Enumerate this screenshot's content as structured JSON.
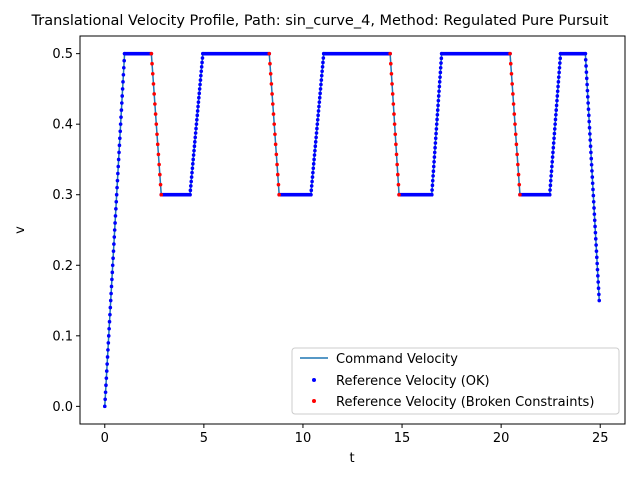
{
  "chart_data": {
    "type": "line+scatter",
    "title": "Translational Velocity Profile, Path: sin_curve_4, Method: Regulated Pure Pursuit",
    "xlabel": "t",
    "ylabel": "v",
    "xlim": [
      -1.25,
      26.25
    ],
    "ylim": [
      -0.025,
      0.525
    ],
    "x_ticks": [
      0,
      5,
      10,
      15,
      20,
      25
    ],
    "y_ticks": [
      0.0,
      0.1,
      0.2,
      0.3,
      0.4,
      0.5
    ],
    "x_tick_labels": [
      "0",
      "5",
      "10",
      "15",
      "20",
      "25"
    ],
    "y_tick_labels": [
      "0.0",
      "0.1",
      "0.2",
      "0.3",
      "0.4",
      "0.5"
    ],
    "grid": false,
    "legend_position": "lower-right",
    "series": [
      {
        "name": "Command Velocity",
        "kind": "line",
        "color": "#1f77b4",
        "x": [
          0,
          1.0,
          2.35,
          2.85,
          4.3,
          4.95,
          8.3,
          8.8,
          10.4,
          11.05,
          14.4,
          14.85,
          16.5,
          17.0,
          20.45,
          20.95,
          22.45,
          23.0,
          24.25,
          24.95
        ],
        "y": [
          0.0,
          0.5,
          0.5,
          0.3,
          0.3,
          0.5,
          0.5,
          0.3,
          0.3,
          0.5,
          0.5,
          0.3,
          0.3,
          0.5,
          0.5,
          0.3,
          0.3,
          0.5,
          0.5,
          0.15
        ]
      },
      {
        "name": "Reference Velocity (OK)",
        "kind": "scatter",
        "color": "#0000ff",
        "segments": [
          {
            "x0": 0.0,
            "x1": 1.0,
            "y0": 0.0,
            "y1": 0.5,
            "n": 50
          },
          {
            "x0": 1.0,
            "x1": 2.35,
            "y0": 0.5,
            "y1": 0.5,
            "n": 28
          },
          {
            "x0": 2.85,
            "x1": 4.3,
            "y0": 0.3,
            "y1": 0.3,
            "n": 30
          },
          {
            "x0": 4.3,
            "x1": 4.95,
            "y0": 0.3,
            "y1": 0.5,
            "n": 32
          },
          {
            "x0": 4.95,
            "x1": 8.3,
            "y0": 0.5,
            "y1": 0.5,
            "n": 68
          },
          {
            "x0": 8.8,
            "x1": 10.4,
            "y0": 0.3,
            "y1": 0.3,
            "n": 32
          },
          {
            "x0": 10.4,
            "x1": 11.05,
            "y0": 0.3,
            "y1": 0.5,
            "n": 32
          },
          {
            "x0": 11.05,
            "x1": 14.4,
            "y0": 0.5,
            "y1": 0.5,
            "n": 68
          },
          {
            "x0": 14.85,
            "x1": 16.5,
            "y0": 0.3,
            "y1": 0.3,
            "n": 34
          },
          {
            "x0": 16.5,
            "x1": 17.0,
            "y0": 0.3,
            "y1": 0.5,
            "n": 30
          },
          {
            "x0": 17.0,
            "x1": 20.45,
            "y0": 0.5,
            "y1": 0.5,
            "n": 70
          },
          {
            "x0": 20.95,
            "x1": 22.45,
            "y0": 0.3,
            "y1": 0.3,
            "n": 30
          },
          {
            "x0": 22.45,
            "x1": 23.0,
            "y0": 0.3,
            "y1": 0.5,
            "n": 30
          },
          {
            "x0": 23.0,
            "x1": 24.25,
            "y0": 0.5,
            "y1": 0.5,
            "n": 26
          },
          {
            "x0": 24.25,
            "x1": 24.95,
            "y0": 0.5,
            "y1": 0.15,
            "n": 40
          }
        ]
      },
      {
        "name": "Reference Velocity (Broken Constraints)",
        "kind": "scatter",
        "color": "#ff0000",
        "segments": [
          {
            "x0": 2.35,
            "x1": 2.85,
            "y0": 0.5,
            "y1": 0.3,
            "n": 14
          },
          {
            "x0": 8.3,
            "x1": 8.8,
            "y0": 0.5,
            "y1": 0.3,
            "n": 14
          },
          {
            "x0": 14.4,
            "x1": 14.85,
            "y0": 0.5,
            "y1": 0.3,
            "n": 14
          },
          {
            "x0": 20.45,
            "x1": 20.95,
            "y0": 0.5,
            "y1": 0.3,
            "n": 14
          }
        ]
      }
    ]
  }
}
